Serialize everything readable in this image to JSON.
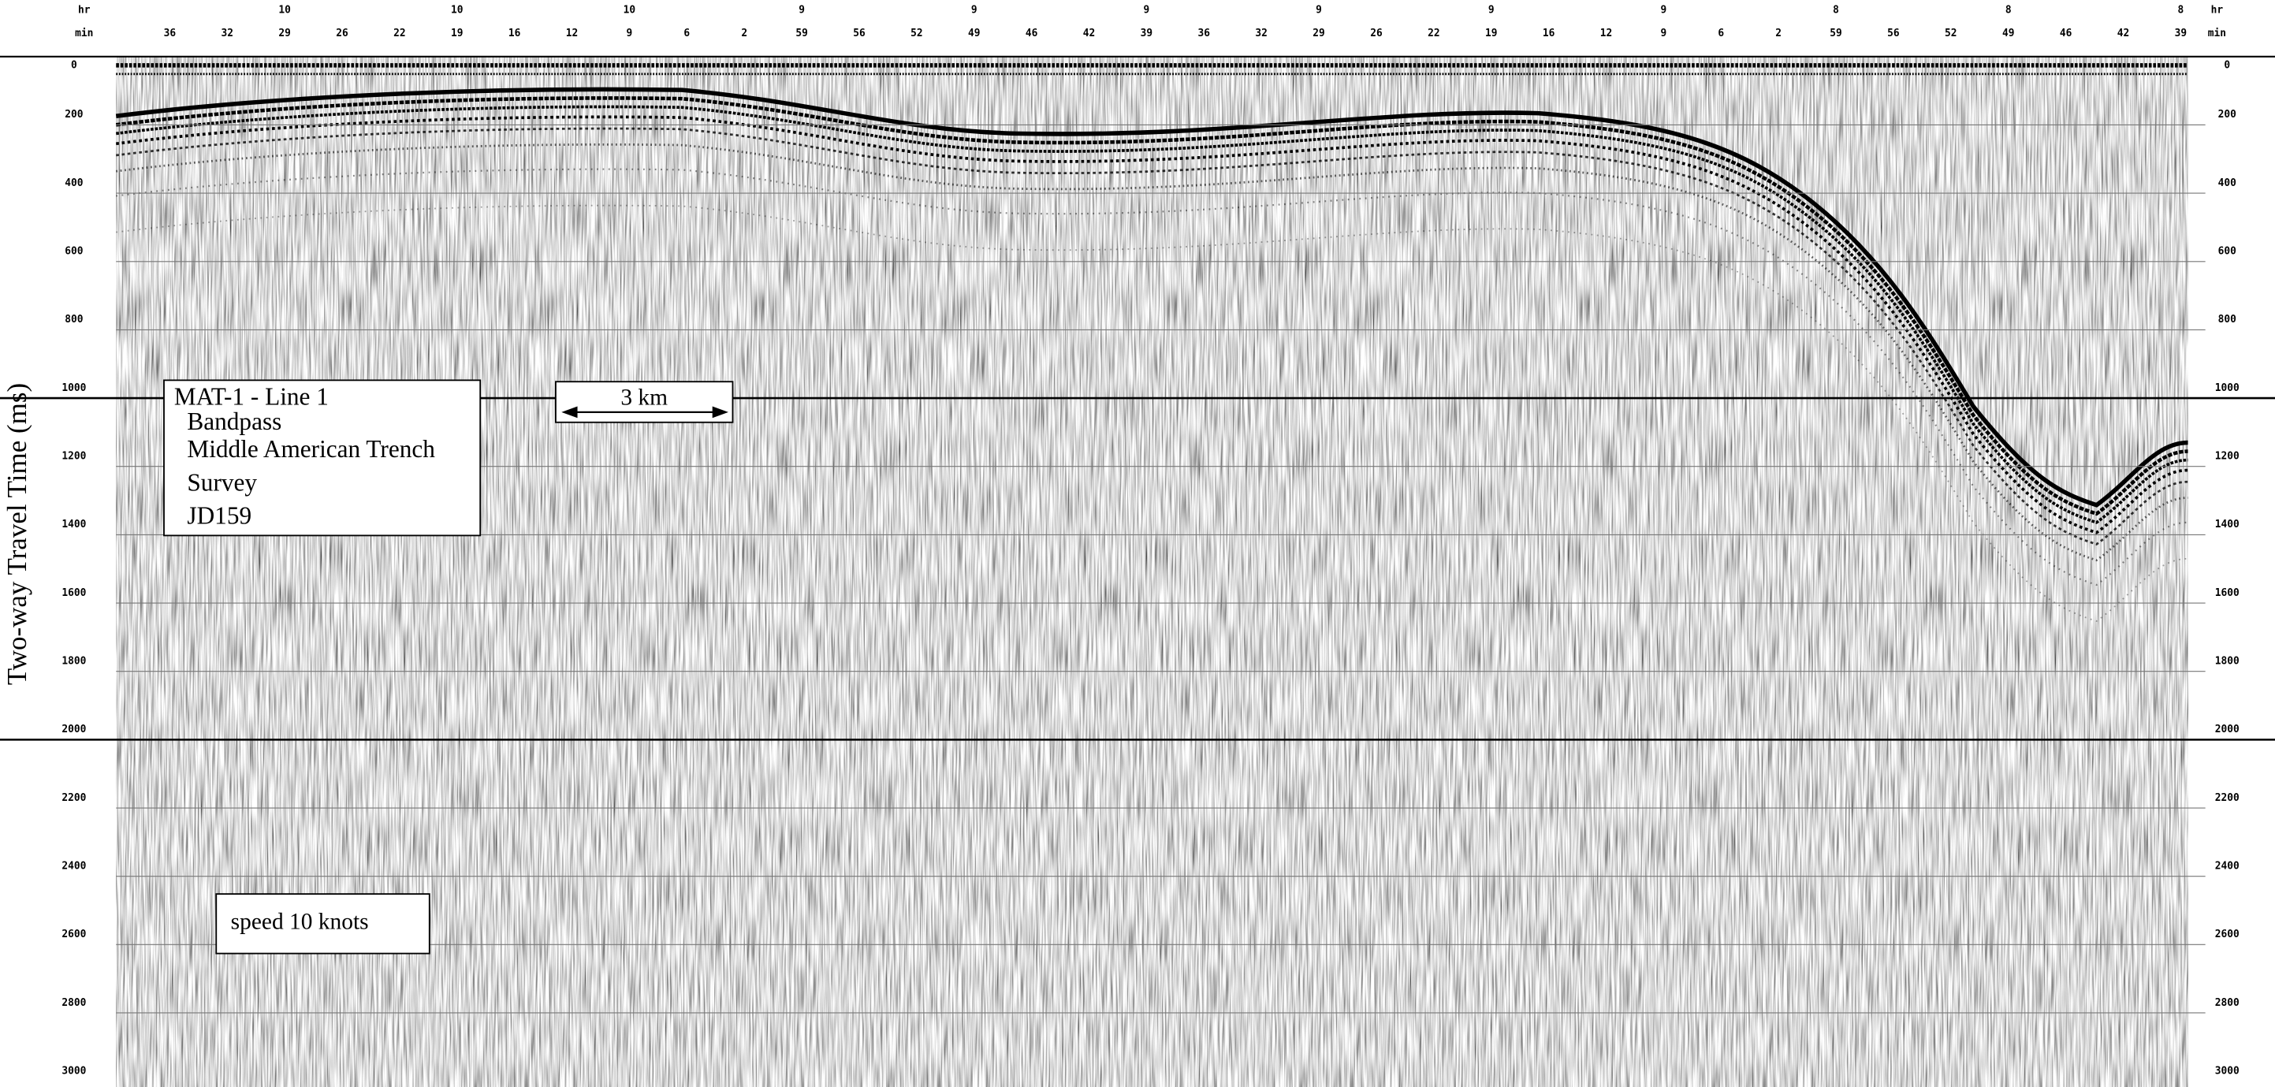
{
  "axis": {
    "label": "Two-way Travel Time (ms)",
    "yticks": [
      0,
      200,
      400,
      600,
      800,
      1000,
      1200,
      1400,
      1600,
      1800,
      2000,
      2200,
      2400,
      2600,
      2800,
      3000
    ]
  },
  "time_axis": {
    "hr_label": "hr",
    "min_label": "min",
    "hours": [
      10,
      10,
      10,
      9,
      9,
      9,
      9,
      9,
      9,
      8,
      8,
      8
    ],
    "minutes": [
      36,
      32,
      29,
      26,
      22,
      19,
      16,
      12,
      9,
      6,
      2,
      59,
      56,
      52,
      49,
      46,
      42,
      39,
      36,
      32,
      29,
      26,
      22,
      19,
      16,
      12,
      9,
      6,
      2,
      59,
      56,
      52,
      49,
      46,
      42,
      39
    ]
  },
  "info_box": {
    "lines": [
      "MAT-1 - Line 1",
      "Bandpass",
      "Middle American Trench",
      "Survey",
      "JD159"
    ]
  },
  "scale_bar": {
    "label": "3 km"
  },
  "speed_box": {
    "label": "speed 10 knots"
  }
}
